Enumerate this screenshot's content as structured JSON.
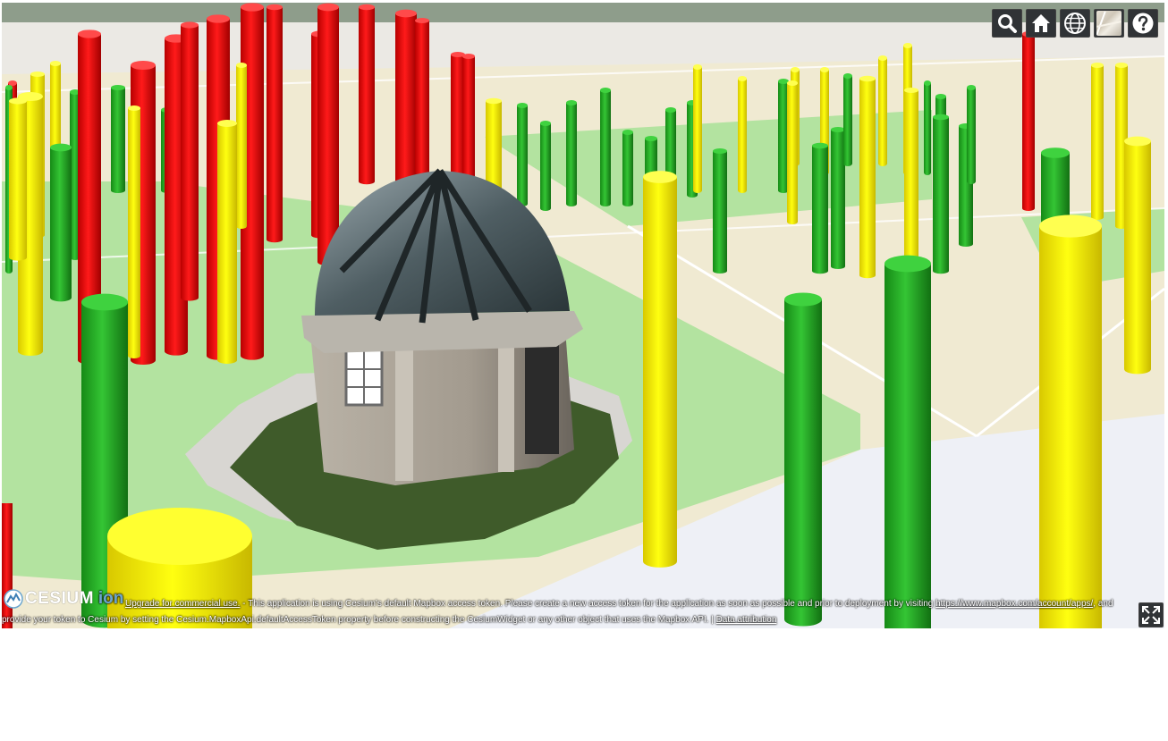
{
  "toolbar": {
    "geocoder_icon": "search-icon",
    "home_icon": "home-icon",
    "scene_mode_icon": "globe-icon",
    "base_layer_icon": "map-thumbnail-icon",
    "help_icon": "question-icon"
  },
  "logo": {
    "brand": "CESIUM",
    "product": "ion"
  },
  "credits": {
    "upgrade_link": "Upgrade for commercial use.",
    "message_part1": " - This application is using Cesium's default Mapbox access token. Please create a new access token for the application as soon as possible and prior to deployment by visiting ",
    "mapbox_link": "https://www.mapbox.com/account/apps/",
    "message_part2": ", and provide your token to Cesium by setting the Cesium.MapboxApi.defaultAccessToken property before constructing the CesiumWidget or any other object that uses the Mapbox API.",
    "separator": " | ",
    "attribution_link": "Data attribution"
  },
  "colors": {
    "red": "#ff0000",
    "green": "#22aa22",
    "yellow": "#ffff00",
    "toolbar_bg": "#303336"
  },
  "fullscreen_icon": "fullscreen-icon"
}
